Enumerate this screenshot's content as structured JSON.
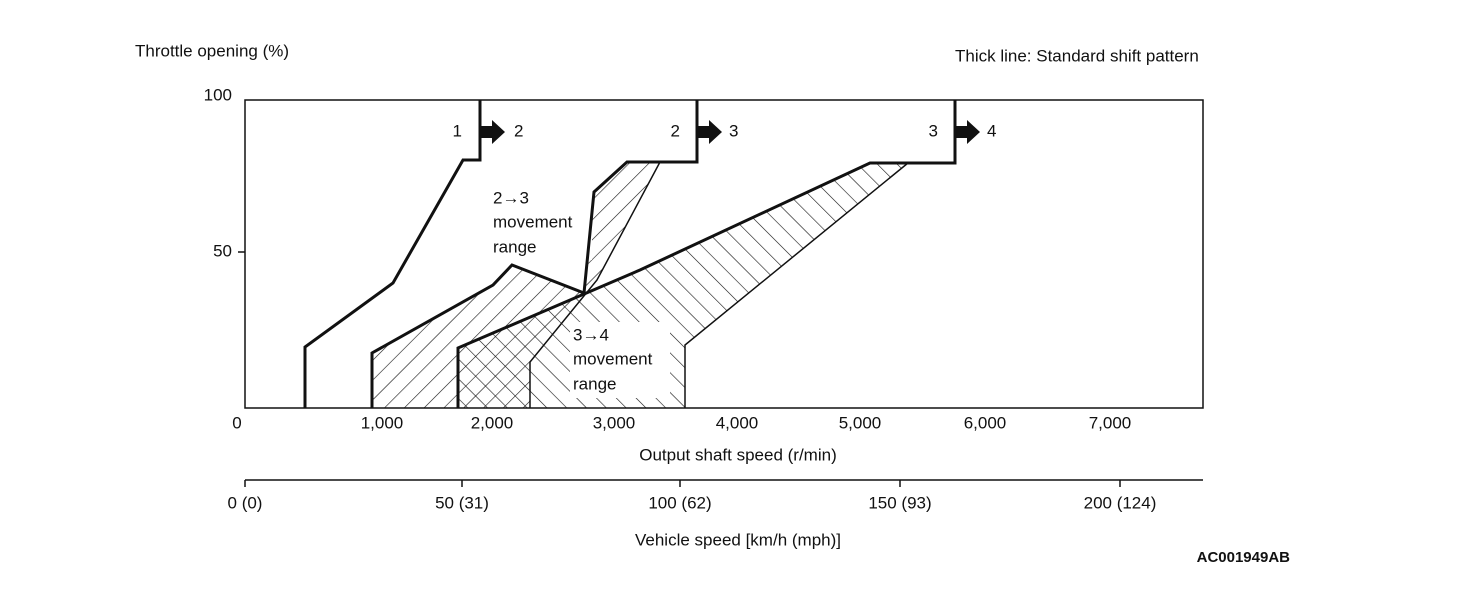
{
  "header": {
    "y_axis_title": "Throttle opening (%)",
    "note": "Thick line: Standard shift pattern"
  },
  "y_axis": {
    "ticks": [
      "100",
      "50"
    ]
  },
  "x_axis": {
    "ticks": [
      "0",
      "1,000",
      "2,000",
      "3,000",
      "4,000",
      "5,000",
      "6,000",
      "7,000"
    ],
    "title": "Output shaft speed (r/min)"
  },
  "vehicle_axis": {
    "ticks": [
      "0 (0)",
      "50 (31)",
      "100 (62)",
      "150 (93)",
      "200 (124)"
    ],
    "title": "Vehicle speed [km/h (mph)]"
  },
  "shifts": [
    {
      "from": "1",
      "to": "2"
    },
    {
      "from": "2",
      "to": "3"
    },
    {
      "from": "3",
      "to": "4"
    }
  ],
  "ranges": [
    {
      "label": "2→3",
      "line2": "movement",
      "line3": "range"
    },
    {
      "label": "3→4",
      "line2": "movement",
      "line3": "range"
    }
  ],
  "footer": {
    "code": "AC001949AB"
  }
}
